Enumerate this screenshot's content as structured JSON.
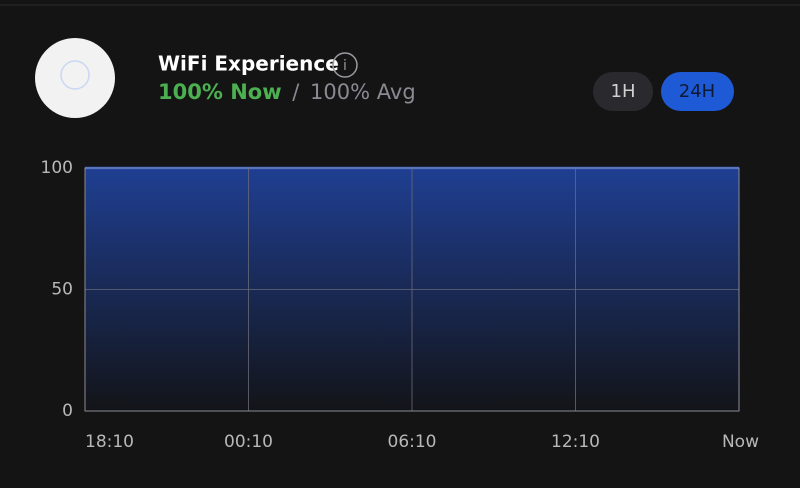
{
  "header": {
    "title": "WiFi Experience",
    "info": "i",
    "now": "100% Now",
    "separator": "/",
    "avg": "100% Avg"
  },
  "buttons": [
    "1H",
    "24H"
  ],
  "chart_data": {
    "type": "area",
    "categories": [
      "18:10",
      "00:10",
      "06:10",
      "12:10",
      "Now"
    ],
    "values": [
      100,
      100,
      100,
      100,
      100
    ],
    "color": "#2f5fd8",
    "ylim": [
      0,
      100
    ],
    "yticks": [
      0,
      50,
      100
    ],
    "grid": true
  }
}
